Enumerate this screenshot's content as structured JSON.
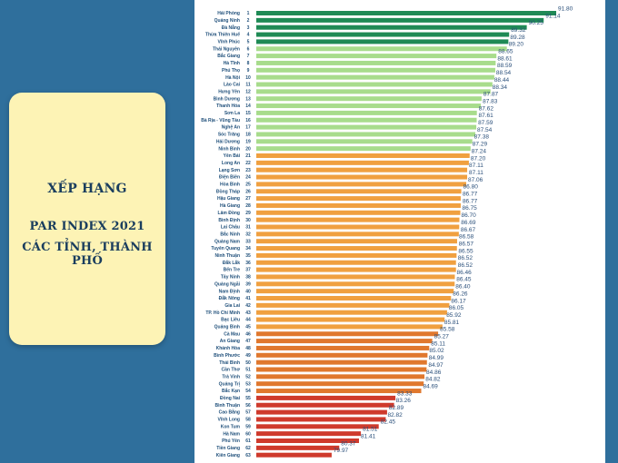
{
  "sidebar": {
    "heading": "XẾP HẠNG",
    "line1": "PAR INDEX 2021",
    "line2": "CÁC TỈNH, THÀNH PHỐ"
  },
  "colors": {
    "background": "#2f6f9c",
    "panel": "#fdf3b5",
    "panel_text": "#1a3d5e",
    "dark_green": "#1f8a55",
    "light_green": "#a8dc8c",
    "orange": "#f0a040",
    "dark_orange": "#e0782e",
    "red": "#cf3a2c"
  },
  "chart_data": {
    "type": "bar",
    "orientation": "horizontal",
    "title": "",
    "xlabel": "",
    "ylabel": "",
    "categories": [
      "Hải Phòng",
      "Quảng Ninh",
      "Đà Nẵng",
      "Thừa Thiên Huế",
      "Vĩnh Phúc",
      "Thái Nguyên",
      "Bắc Giang",
      "Hà Tĩnh",
      "Phú Thọ",
      "Hà Nội",
      "Lào Cai",
      "Hưng Yên",
      "Bình Dương",
      "Thanh Hóa",
      "Sơn La",
      "Bà Rịa - Vũng Tàu",
      "Nghệ An",
      "Sóc Trăng",
      "Hải Dương",
      "Ninh Bình",
      "Yên Bái",
      "Long An",
      "Lạng Sơn",
      "Điện Biên",
      "Hòa Bình",
      "Đồng Tháp",
      "Hậu Giang",
      "Hà Giang",
      "Lâm Đồng",
      "Bình Định",
      "Lai Châu",
      "Bắc Ninh",
      "Quảng Nam",
      "Tuyên Quang",
      "Ninh Thuận",
      "Đắk Lắk",
      "Bến Tre",
      "Tây Ninh",
      "Quảng Ngãi",
      "Nam Định",
      "Đắk Nông",
      "Gia Lai",
      "TP. Hồ Chí Minh",
      "Bạc Liêu",
      "Quảng Bình",
      "Cà Mau",
      "An Giang",
      "Khánh Hòa",
      "Bình Phước",
      "Thái Bình",
      "Cần Thơ",
      "Trà Vinh",
      "Quảng Trị",
      "Bắc Kạn",
      "Đồng Nai",
      "Bình Thuận",
      "Cao Bằng",
      "Vĩnh Long",
      "Kon Tum",
      "Hà Nam",
      "Phú Yên",
      "Tiền Giang",
      "Kiên Giang"
    ],
    "ranks": [
      1,
      2,
      3,
      4,
      5,
      6,
      7,
      8,
      9,
      10,
      11,
      12,
      13,
      14,
      15,
      16,
      17,
      18,
      19,
      20,
      21,
      22,
      23,
      24,
      25,
      26,
      27,
      28,
      29,
      30,
      31,
      32,
      33,
      34,
      35,
      36,
      37,
      38,
      39,
      40,
      41,
      42,
      43,
      44,
      45,
      46,
      47,
      48,
      49,
      50,
      51,
      52,
      53,
      54,
      55,
      56,
      57,
      58,
      59,
      60,
      61,
      62,
      63
    ],
    "values": [
      91.8,
      91.14,
      90.25,
      89.32,
      89.28,
      89.2,
      88.65,
      88.61,
      88.59,
      88.54,
      88.44,
      88.34,
      87.87,
      87.83,
      87.62,
      87.61,
      87.59,
      87.54,
      87.38,
      87.29,
      87.24,
      87.2,
      87.11,
      87.11,
      87.06,
      86.8,
      86.77,
      86.77,
      86.75,
      86.7,
      86.69,
      86.67,
      86.58,
      86.57,
      86.55,
      86.52,
      86.52,
      86.46,
      86.45,
      86.4,
      86.26,
      86.17,
      86.05,
      85.92,
      85.81,
      85.58,
      85.27,
      85.11,
      85.02,
      84.99,
      84.97,
      84.86,
      84.82,
      84.69,
      83.33,
      83.26,
      82.89,
      82.82,
      82.45,
      81.51,
      81.41,
      80.37,
      79.97
    ],
    "value_labels": [
      "91.80",
      "91.14",
      "90.25",
      "89.32",
      "89.28",
      "89.20",
      "88.65",
      "88.61",
      "88.59",
      "88.54",
      "88.44",
      "88.34",
      "87.87",
      "87.83",
      "87.62",
      "87.61",
      "87.59",
      "87.54",
      "87.38",
      "87.29",
      "87.24",
      "87.20",
      "87.11",
      "87.11",
      "87.06",
      "86.80",
      "86.77",
      "86.77",
      "86.75",
      "86.70",
      "86.69",
      "86.67",
      "86.58",
      "86.57",
      "86.55",
      "86.52",
      "86.52",
      "86.46",
      "86.45",
      "86.40",
      "86.26",
      "86.17",
      "86.05",
      "85.92",
      "85.81",
      "85.58",
      "85.27",
      "85.11",
      "85.02",
      "84.99",
      "84.97",
      "84.86",
      "84.82",
      "84.69",
      "83.33",
      "83.26",
      "82.89",
      "82.82",
      "82.45",
      "81.51",
      "81.41",
      "80.37",
      "79.97"
    ],
    "groups": [
      {
        "from_rank": 1,
        "to_rank": 5,
        "color": "#1f8a55"
      },
      {
        "from_rank": 6,
        "to_rank": 20,
        "color": "#a8dc8c"
      },
      {
        "from_rank": 21,
        "to_rank": 45,
        "color": "#f0a040"
      },
      {
        "from_rank": 46,
        "to_rank": 54,
        "color": "#e0782e"
      },
      {
        "from_rank": 55,
        "to_rank": 63,
        "color": "#cf3a2c"
      }
    ],
    "grid": false,
    "legend": "none"
  }
}
